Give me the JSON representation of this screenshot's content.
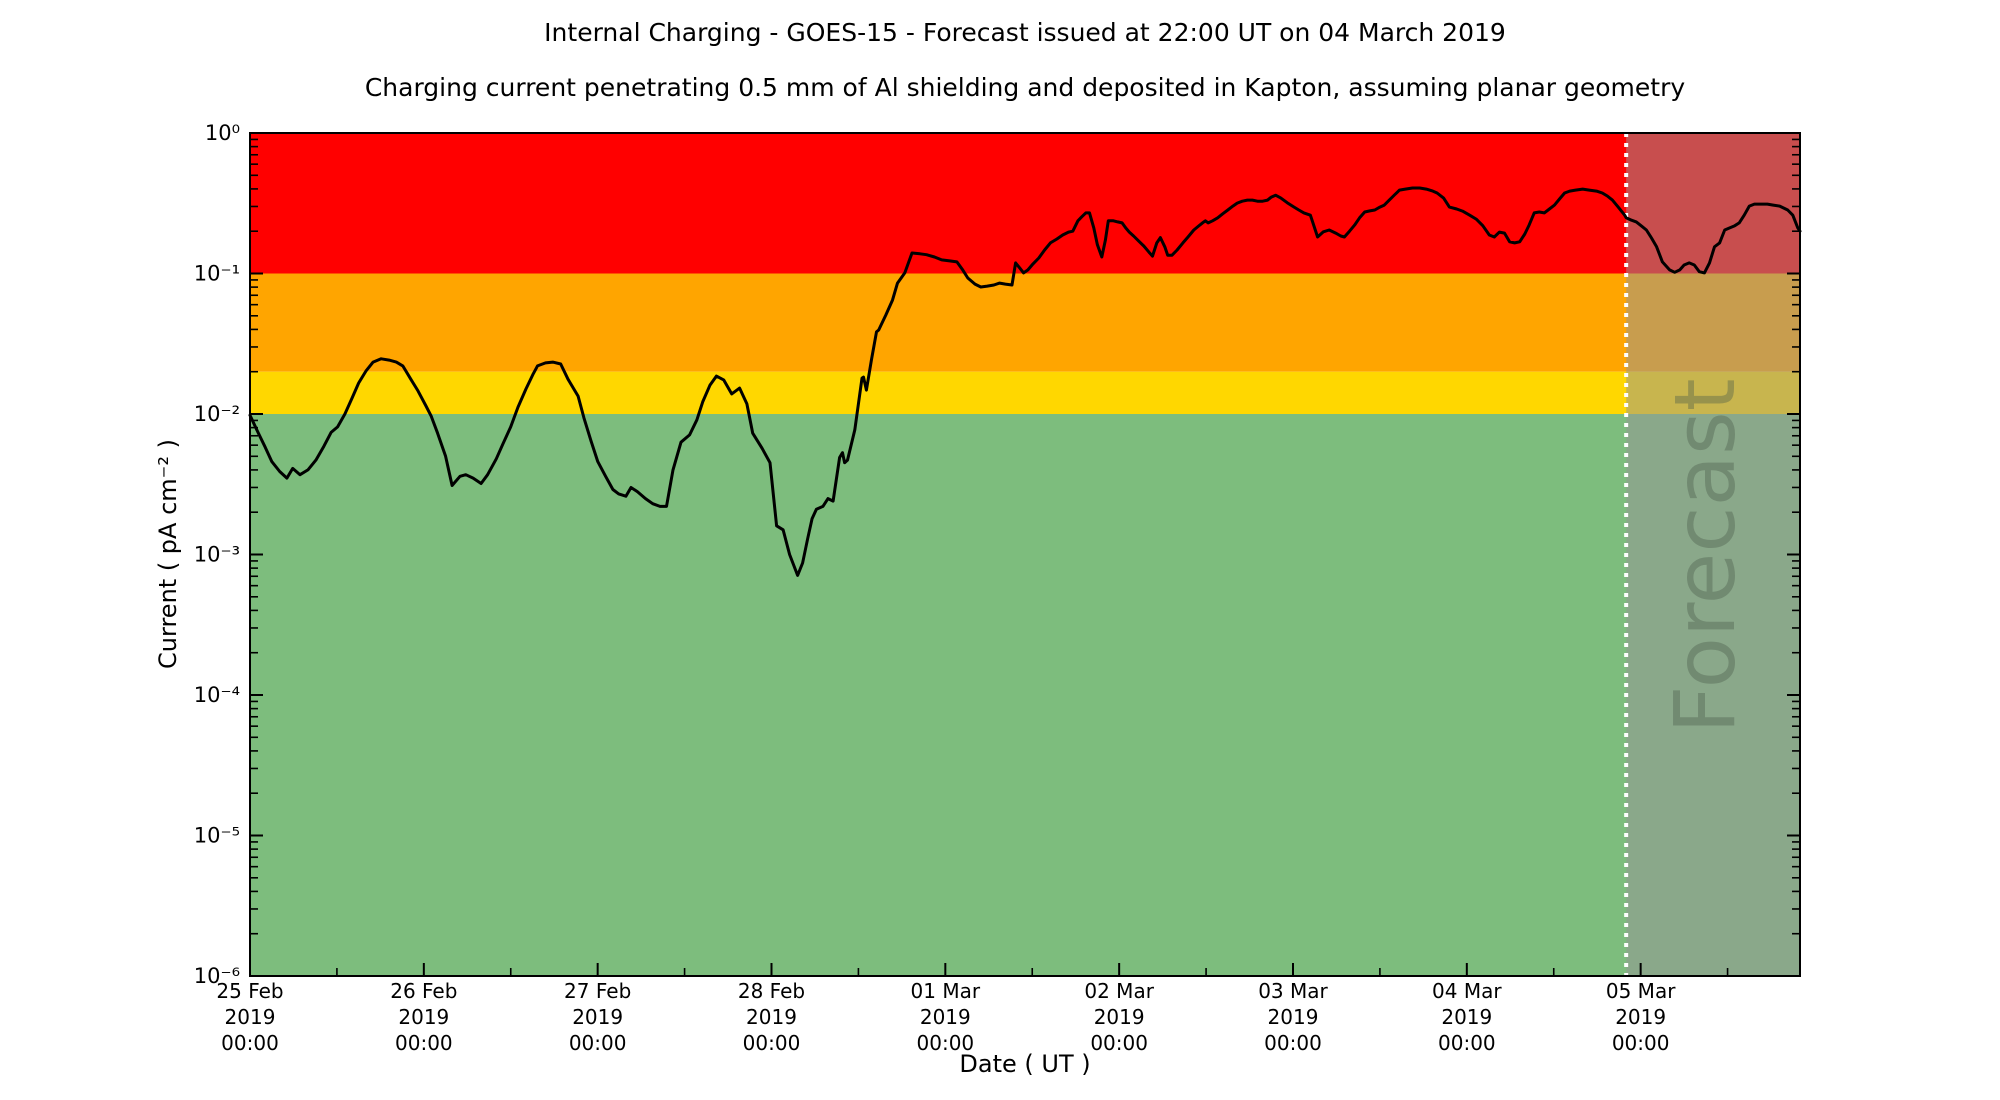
{
  "chart_data": {
    "type": "line",
    "title": "Internal Charging - GOES-15 - Forecast issued at 22:00 UT on 04 March 2019",
    "subtitle": "Charging current penetrating 0.5 mm of Al shielding and deposited in Kapton, assuming planar geometry",
    "xlabel": "Date ( UT )",
    "ylabel": "Current ( pA cm⁻² )",
    "x_unit": "hours since 25 Feb 2019 00:00 UT",
    "x_range_hours": [
      0,
      214
    ],
    "ylim": [
      1e-06,
      1.0
    ],
    "y_scale": "log",
    "grid": false,
    "legend": "none",
    "yticks": [
      {
        "value": 1.0,
        "label": "10⁰"
      },
      {
        "value": 0.1,
        "label": "10⁻¹"
      },
      {
        "value": 0.01,
        "label": "10⁻²"
      },
      {
        "value": 0.001,
        "label": "10⁻³"
      },
      {
        "value": 0.0001,
        "label": "10⁻⁴"
      },
      {
        "value": 1e-05,
        "label": "10⁻⁵"
      },
      {
        "value": 1e-06,
        "label": "10⁻⁶"
      }
    ],
    "xticks": [
      {
        "hours": 0,
        "lines": [
          "25 Feb",
          "2019",
          "00:00"
        ]
      },
      {
        "hours": 24,
        "lines": [
          "26 Feb",
          "2019",
          "00:00"
        ]
      },
      {
        "hours": 48,
        "lines": [
          "27 Feb",
          "2019",
          "00:00"
        ]
      },
      {
        "hours": 72,
        "lines": [
          "28 Feb",
          "2019",
          "00:00"
        ]
      },
      {
        "hours": 96,
        "lines": [
          "01 Mar",
          "2019",
          "00:00"
        ]
      },
      {
        "hours": 120,
        "lines": [
          "02 Mar",
          "2019",
          "00:00"
        ]
      },
      {
        "hours": 144,
        "lines": [
          "03 Mar",
          "2019",
          "00:00"
        ]
      },
      {
        "hours": 168,
        "lines": [
          "04 Mar",
          "2019",
          "00:00"
        ]
      },
      {
        "hours": 192,
        "lines": [
          "05 Mar",
          "2019",
          "00:00"
        ]
      }
    ],
    "x_minor_tick_hours": 12,
    "bands": [
      {
        "name": "red-alert-band",
        "color": "#ff0000",
        "from": 0.1,
        "to": 1.0
      },
      {
        "name": "orange-alert-band",
        "color": "#ffa500",
        "from": 0.02,
        "to": 0.1
      },
      {
        "name": "yellow-alert-band",
        "color": "#ffd700",
        "from": 0.01,
        "to": 0.02
      },
      {
        "name": "green-safe-band",
        "color": "#7dbd7d",
        "from": 1e-06,
        "to": 0.01
      }
    ],
    "forecast": {
      "start_hours": 190,
      "end_hours": 214,
      "watermark": "Forecast",
      "overlay_color": "#969696",
      "overlay_opacity": 0.52,
      "divider_color": "#ffffff",
      "divider_style": "dotted"
    },
    "series": [
      {
        "name": "charging-current",
        "color": "#000000",
        "points": [
          [
            0.0,
            0.0098
          ],
          [
            1.1,
            0.0074
          ],
          [
            2.1,
            0.0058
          ],
          [
            3.0,
            0.0046
          ],
          [
            4.1,
            0.0039
          ],
          [
            5.1,
            0.0035
          ],
          [
            5.9,
            0.0041
          ],
          [
            6.9,
            0.0037
          ],
          [
            8.0,
            0.004
          ],
          [
            9.1,
            0.0047
          ],
          [
            10.2,
            0.0059
          ],
          [
            11.2,
            0.0074
          ],
          [
            12.1,
            0.0081
          ],
          [
            13.1,
            0.01
          ],
          [
            14.1,
            0.013
          ],
          [
            15.0,
            0.0166
          ],
          [
            16.0,
            0.0202
          ],
          [
            17.0,
            0.0234
          ],
          [
            18.1,
            0.0247
          ],
          [
            19.2,
            0.0242
          ],
          [
            20.2,
            0.0234
          ],
          [
            21.1,
            0.022
          ],
          [
            22.2,
            0.0177
          ],
          [
            23.2,
            0.0146
          ],
          [
            24.3,
            0.0114
          ],
          [
            25.0,
            0.0097
          ],
          [
            25.9,
            0.0073
          ],
          [
            27.0,
            0.005
          ],
          [
            27.9,
            0.0031
          ],
          [
            29.0,
            0.0036
          ],
          [
            29.8,
            0.0037
          ],
          [
            30.8,
            0.0035
          ],
          [
            31.9,
            0.0032
          ],
          [
            32.8,
            0.0037
          ],
          [
            34.0,
            0.0048
          ],
          [
            34.9,
            0.0061
          ],
          [
            36.0,
            0.0081
          ],
          [
            37.0,
            0.0112
          ],
          [
            38.1,
            0.0151
          ],
          [
            39.1,
            0.0193
          ],
          [
            39.7,
            0.022
          ],
          [
            40.8,
            0.0231
          ],
          [
            41.8,
            0.0234
          ],
          [
            42.9,
            0.0227
          ],
          [
            43.9,
            0.0177
          ],
          [
            45.3,
            0.0134
          ],
          [
            46.1,
            0.0094
          ],
          [
            47.1,
            0.0064
          ],
          [
            48.0,
            0.0046
          ],
          [
            49.1,
            0.0036
          ],
          [
            50.1,
            0.0029
          ],
          [
            50.9,
            0.0027
          ],
          [
            51.9,
            0.0026
          ],
          [
            52.6,
            0.003
          ],
          [
            53.5,
            0.0028
          ],
          [
            54.6,
            0.0025
          ],
          [
            55.6,
            0.0023
          ],
          [
            56.6,
            0.0022
          ],
          [
            57.5,
            0.0022
          ],
          [
            58.4,
            0.004
          ],
          [
            59.5,
            0.0063
          ],
          [
            60.7,
            0.0071
          ],
          [
            61.7,
            0.0091
          ],
          [
            62.5,
            0.0122
          ],
          [
            63.5,
            0.016
          ],
          [
            64.4,
            0.0186
          ],
          [
            65.4,
            0.0175
          ],
          [
            66.5,
            0.0139
          ],
          [
            67.6,
            0.0153
          ],
          [
            68.6,
            0.0118
          ],
          [
            69.4,
            0.0073
          ],
          [
            70.7,
            0.0057
          ],
          [
            71.8,
            0.0045
          ],
          [
            72.7,
            0.0016
          ],
          [
            73.6,
            0.0015
          ],
          [
            74.5,
            0.001
          ],
          [
            75.6,
            0.00071
          ],
          [
            76.3,
            0.00087
          ],
          [
            77.0,
            0.0013
          ],
          [
            77.6,
            0.0018
          ],
          [
            78.2,
            0.0021
          ],
          [
            79.1,
            0.0022
          ],
          [
            79.8,
            0.0025
          ],
          [
            80.5,
            0.0024
          ],
          [
            81.4,
            0.0049
          ],
          [
            81.8,
            0.0053
          ],
          [
            82.1,
            0.0045
          ],
          [
            82.5,
            0.0047
          ],
          [
            83.5,
            0.0077
          ],
          [
            84.5,
            0.018
          ],
          [
            84.7,
            0.0183
          ],
          [
            85.1,
            0.0148
          ],
          [
            85.8,
            0.0242
          ],
          [
            86.5,
            0.0384
          ],
          [
            86.8,
            0.0396
          ],
          [
            87.8,
            0.0507
          ],
          [
            88.7,
            0.0647
          ],
          [
            89.4,
            0.0855
          ],
          [
            90.4,
            0.101
          ],
          [
            91.4,
            0.14
          ],
          [
            92.5,
            0.138
          ],
          [
            93.4,
            0.136
          ],
          [
            94.5,
            0.131
          ],
          [
            95.5,
            0.125
          ],
          [
            96.6,
            0.123
          ],
          [
            97.6,
            0.121
          ],
          [
            98.4,
            0.106
          ],
          [
            99.1,
            0.0929
          ],
          [
            100.1,
            0.0841
          ],
          [
            100.9,
            0.0801
          ],
          [
            101.8,
            0.0814
          ],
          [
            102.7,
            0.0828
          ],
          [
            103.5,
            0.0855
          ],
          [
            104.3,
            0.0841
          ],
          [
            105.2,
            0.0828
          ],
          [
            105.7,
            0.119
          ],
          [
            106.3,
            0.109
          ],
          [
            106.8,
            0.101
          ],
          [
            107.4,
            0.106
          ],
          [
            108.1,
            0.117
          ],
          [
            108.9,
            0.129
          ],
          [
            109.7,
            0.147
          ],
          [
            110.5,
            0.165
          ],
          [
            111.4,
            0.176
          ],
          [
            112.2,
            0.188
          ],
          [
            113.0,
            0.197
          ],
          [
            113.6,
            0.2
          ],
          [
            114.3,
            0.237
          ],
          [
            114.8,
            0.252
          ],
          [
            115.4,
            0.27
          ],
          [
            115.9,
            0.27
          ],
          [
            116.5,
            0.211
          ],
          [
            117.0,
            0.16
          ],
          [
            117.6,
            0.131
          ],
          [
            118.1,
            0.173
          ],
          [
            118.5,
            0.237
          ],
          [
            119.2,
            0.237
          ],
          [
            119.8,
            0.233
          ],
          [
            120.4,
            0.229
          ],
          [
            120.9,
            0.211
          ],
          [
            121.4,
            0.197
          ],
          [
            122.0,
            0.185
          ],
          [
            122.7,
            0.17
          ],
          [
            123.4,
            0.157
          ],
          [
            124.1,
            0.142
          ],
          [
            124.6,
            0.133
          ],
          [
            125.2,
            0.165
          ],
          [
            125.7,
            0.18
          ],
          [
            126.3,
            0.155
          ],
          [
            126.7,
            0.135
          ],
          [
            127.3,
            0.135
          ],
          [
            128.0,
            0.147
          ],
          [
            128.8,
            0.165
          ],
          [
            129.5,
            0.182
          ],
          [
            130.3,
            0.204
          ],
          [
            131.0,
            0.218
          ],
          [
            131.5,
            0.229
          ],
          [
            131.9,
            0.237
          ],
          [
            132.3,
            0.229
          ],
          [
            132.9,
            0.237
          ],
          [
            133.6,
            0.249
          ],
          [
            134.3,
            0.266
          ],
          [
            135.0,
            0.283
          ],
          [
            135.7,
            0.302
          ],
          [
            136.3,
            0.317
          ],
          [
            137.0,
            0.327
          ],
          [
            137.7,
            0.333
          ],
          [
            138.4,
            0.333
          ],
          [
            139.1,
            0.327
          ],
          [
            139.8,
            0.327
          ],
          [
            140.5,
            0.333
          ],
          [
            141.0,
            0.35
          ],
          [
            141.6,
            0.361
          ],
          [
            142.3,
            0.345
          ],
          [
            143.2,
            0.319
          ],
          [
            144.1,
            0.298
          ],
          [
            144.8,
            0.283
          ],
          [
            145.5,
            0.27
          ],
          [
            146.4,
            0.26
          ],
          [
            147.4,
            0.182
          ],
          [
            148.2,
            0.198
          ],
          [
            149.0,
            0.204
          ],
          [
            149.9,
            0.194
          ],
          [
            150.6,
            0.185
          ],
          [
            151.1,
            0.182
          ],
          [
            151.8,
            0.2
          ],
          [
            152.5,
            0.221
          ],
          [
            153.2,
            0.249
          ],
          [
            153.9,
            0.274
          ],
          [
            154.6,
            0.279
          ],
          [
            155.3,
            0.283
          ],
          [
            156.0,
            0.297
          ],
          [
            156.6,
            0.307
          ],
          [
            157.3,
            0.333
          ],
          [
            158.0,
            0.362
          ],
          [
            158.7,
            0.392
          ],
          [
            159.5,
            0.399
          ],
          [
            160.5,
            0.406
          ],
          [
            161.5,
            0.406
          ],
          [
            162.4,
            0.399
          ],
          [
            163.3,
            0.386
          ],
          [
            163.9,
            0.374
          ],
          [
            164.8,
            0.344
          ],
          [
            165.6,
            0.297
          ],
          [
            166.6,
            0.288
          ],
          [
            167.4,
            0.278
          ],
          [
            168.4,
            0.26
          ],
          [
            169.3,
            0.244
          ],
          [
            170.2,
            0.219
          ],
          [
            171.1,
            0.188
          ],
          [
            171.8,
            0.182
          ],
          [
            172.5,
            0.197
          ],
          [
            173.2,
            0.194
          ],
          [
            173.9,
            0.168
          ],
          [
            174.6,
            0.165
          ],
          [
            175.3,
            0.168
          ],
          [
            176.0,
            0.191
          ],
          [
            176.6,
            0.221
          ],
          [
            177.3,
            0.27
          ],
          [
            178.0,
            0.274
          ],
          [
            178.7,
            0.27
          ],
          [
            179.4,
            0.288
          ],
          [
            180.1,
            0.307
          ],
          [
            180.8,
            0.339
          ],
          [
            181.5,
            0.374
          ],
          [
            182.2,
            0.386
          ],
          [
            183.0,
            0.392
          ],
          [
            184.0,
            0.399
          ],
          [
            184.9,
            0.392
          ],
          [
            185.9,
            0.386
          ],
          [
            186.7,
            0.374
          ],
          [
            187.4,
            0.356
          ],
          [
            188.1,
            0.333
          ],
          [
            188.9,
            0.297
          ],
          [
            189.8,
            0.26
          ],
          [
            190.0,
            0.249
          ],
          [
            190.7,
            0.24
          ],
          [
            191.4,
            0.233
          ],
          [
            192.1,
            0.218
          ],
          [
            192.8,
            0.204
          ],
          [
            193.5,
            0.179
          ],
          [
            194.2,
            0.155
          ],
          [
            195.0,
            0.121
          ],
          [
            196.0,
            0.106
          ],
          [
            196.7,
            0.102
          ],
          [
            197.4,
            0.106
          ],
          [
            198.0,
            0.115
          ],
          [
            198.7,
            0.119
          ],
          [
            199.4,
            0.115
          ],
          [
            200.1,
            0.103
          ],
          [
            200.8,
            0.101
          ],
          [
            201.5,
            0.119
          ],
          [
            202.2,
            0.155
          ],
          [
            202.9,
            0.165
          ],
          [
            203.6,
            0.204
          ],
          [
            204.3,
            0.211
          ],
          [
            205.0,
            0.219
          ],
          [
            205.6,
            0.229
          ],
          [
            206.3,
            0.26
          ],
          [
            207.0,
            0.302
          ],
          [
            207.7,
            0.312
          ],
          [
            208.7,
            0.312
          ],
          [
            209.5,
            0.312
          ],
          [
            210.3,
            0.307
          ],
          [
            211.2,
            0.302
          ],
          [
            212.3,
            0.283
          ],
          [
            213.0,
            0.26
          ],
          [
            213.7,
            0.211
          ],
          [
            214.0,
            0.2
          ]
        ]
      }
    ]
  }
}
